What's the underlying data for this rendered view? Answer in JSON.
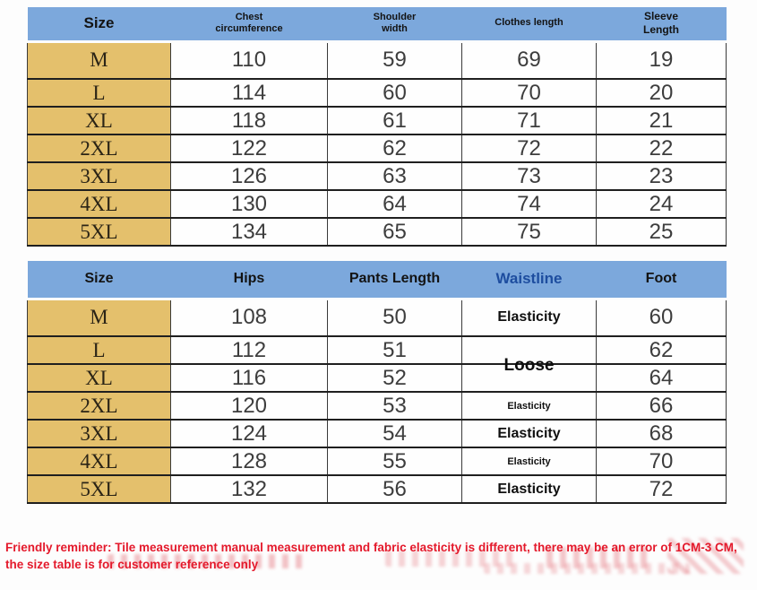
{
  "colors": {
    "header_blue": "#7ca8dc",
    "size_column_tan": "#e4c06c",
    "waistline_header_blue": "#1d4d9f",
    "reminder_red": "#e4192b"
  },
  "table_top": {
    "headers": {
      "size": "Size",
      "chest": "Chest circumference",
      "shoulder": "Shoulder width",
      "clothes": "Clothes length",
      "sleeve": "Sleeve Length"
    },
    "rows": [
      {
        "size": "M",
        "chest": "110",
        "shoulder": "59",
        "clothes": "69",
        "sleeve": "19"
      },
      {
        "size": "L",
        "chest": "114",
        "shoulder": "60",
        "clothes": "70",
        "sleeve": "20"
      },
      {
        "size": "XL",
        "chest": "118",
        "shoulder": "61",
        "clothes": "71",
        "sleeve": "21"
      },
      {
        "size": "2XL",
        "chest": "122",
        "shoulder": "62",
        "clothes": "72",
        "sleeve": "22"
      },
      {
        "size": "3XL",
        "chest": "126",
        "shoulder": "63",
        "clothes": "73",
        "sleeve": "23"
      },
      {
        "size": "4XL",
        "chest": "130",
        "shoulder": "64",
        "clothes": "74",
        "sleeve": "24"
      },
      {
        "size": "5XL",
        "chest": "134",
        "shoulder": "65",
        "clothes": "75",
        "sleeve": "25"
      }
    ]
  },
  "table_bottom": {
    "headers": {
      "size": "Size",
      "hips": "Hips",
      "pants": "Pants Length",
      "waistline": "Waistline",
      "foot": "Foot"
    },
    "rows": [
      {
        "size": "M",
        "hips": "108",
        "pants": "50",
        "waistline": "Elasticity",
        "foot": "60"
      },
      {
        "size": "L",
        "hips": "112",
        "pants": "51",
        "waistline": "Loose",
        "foot": "62"
      },
      {
        "size": "XL",
        "hips": "116",
        "pants": "52",
        "waistline": "",
        "foot": "64"
      },
      {
        "size": "2XL",
        "hips": "120",
        "pants": "53",
        "waistline": "Elasticity",
        "foot": "66"
      },
      {
        "size": "3XL",
        "hips": "124",
        "pants": "54",
        "waistline": "Elasticity",
        "foot": "68"
      },
      {
        "size": "4XL",
        "hips": "128",
        "pants": "55",
        "waistline": "Elasticity",
        "foot": "70"
      },
      {
        "size": "5XL",
        "hips": "132",
        "pants": "56",
        "waistline": "Elasticity",
        "foot": "72"
      }
    ]
  },
  "reminder": "Friendly reminder: Tile measurement manual measurement and fabric elasticity is different, there may be an error of 1CM-3 CM, the size table is for customer reference only"
}
